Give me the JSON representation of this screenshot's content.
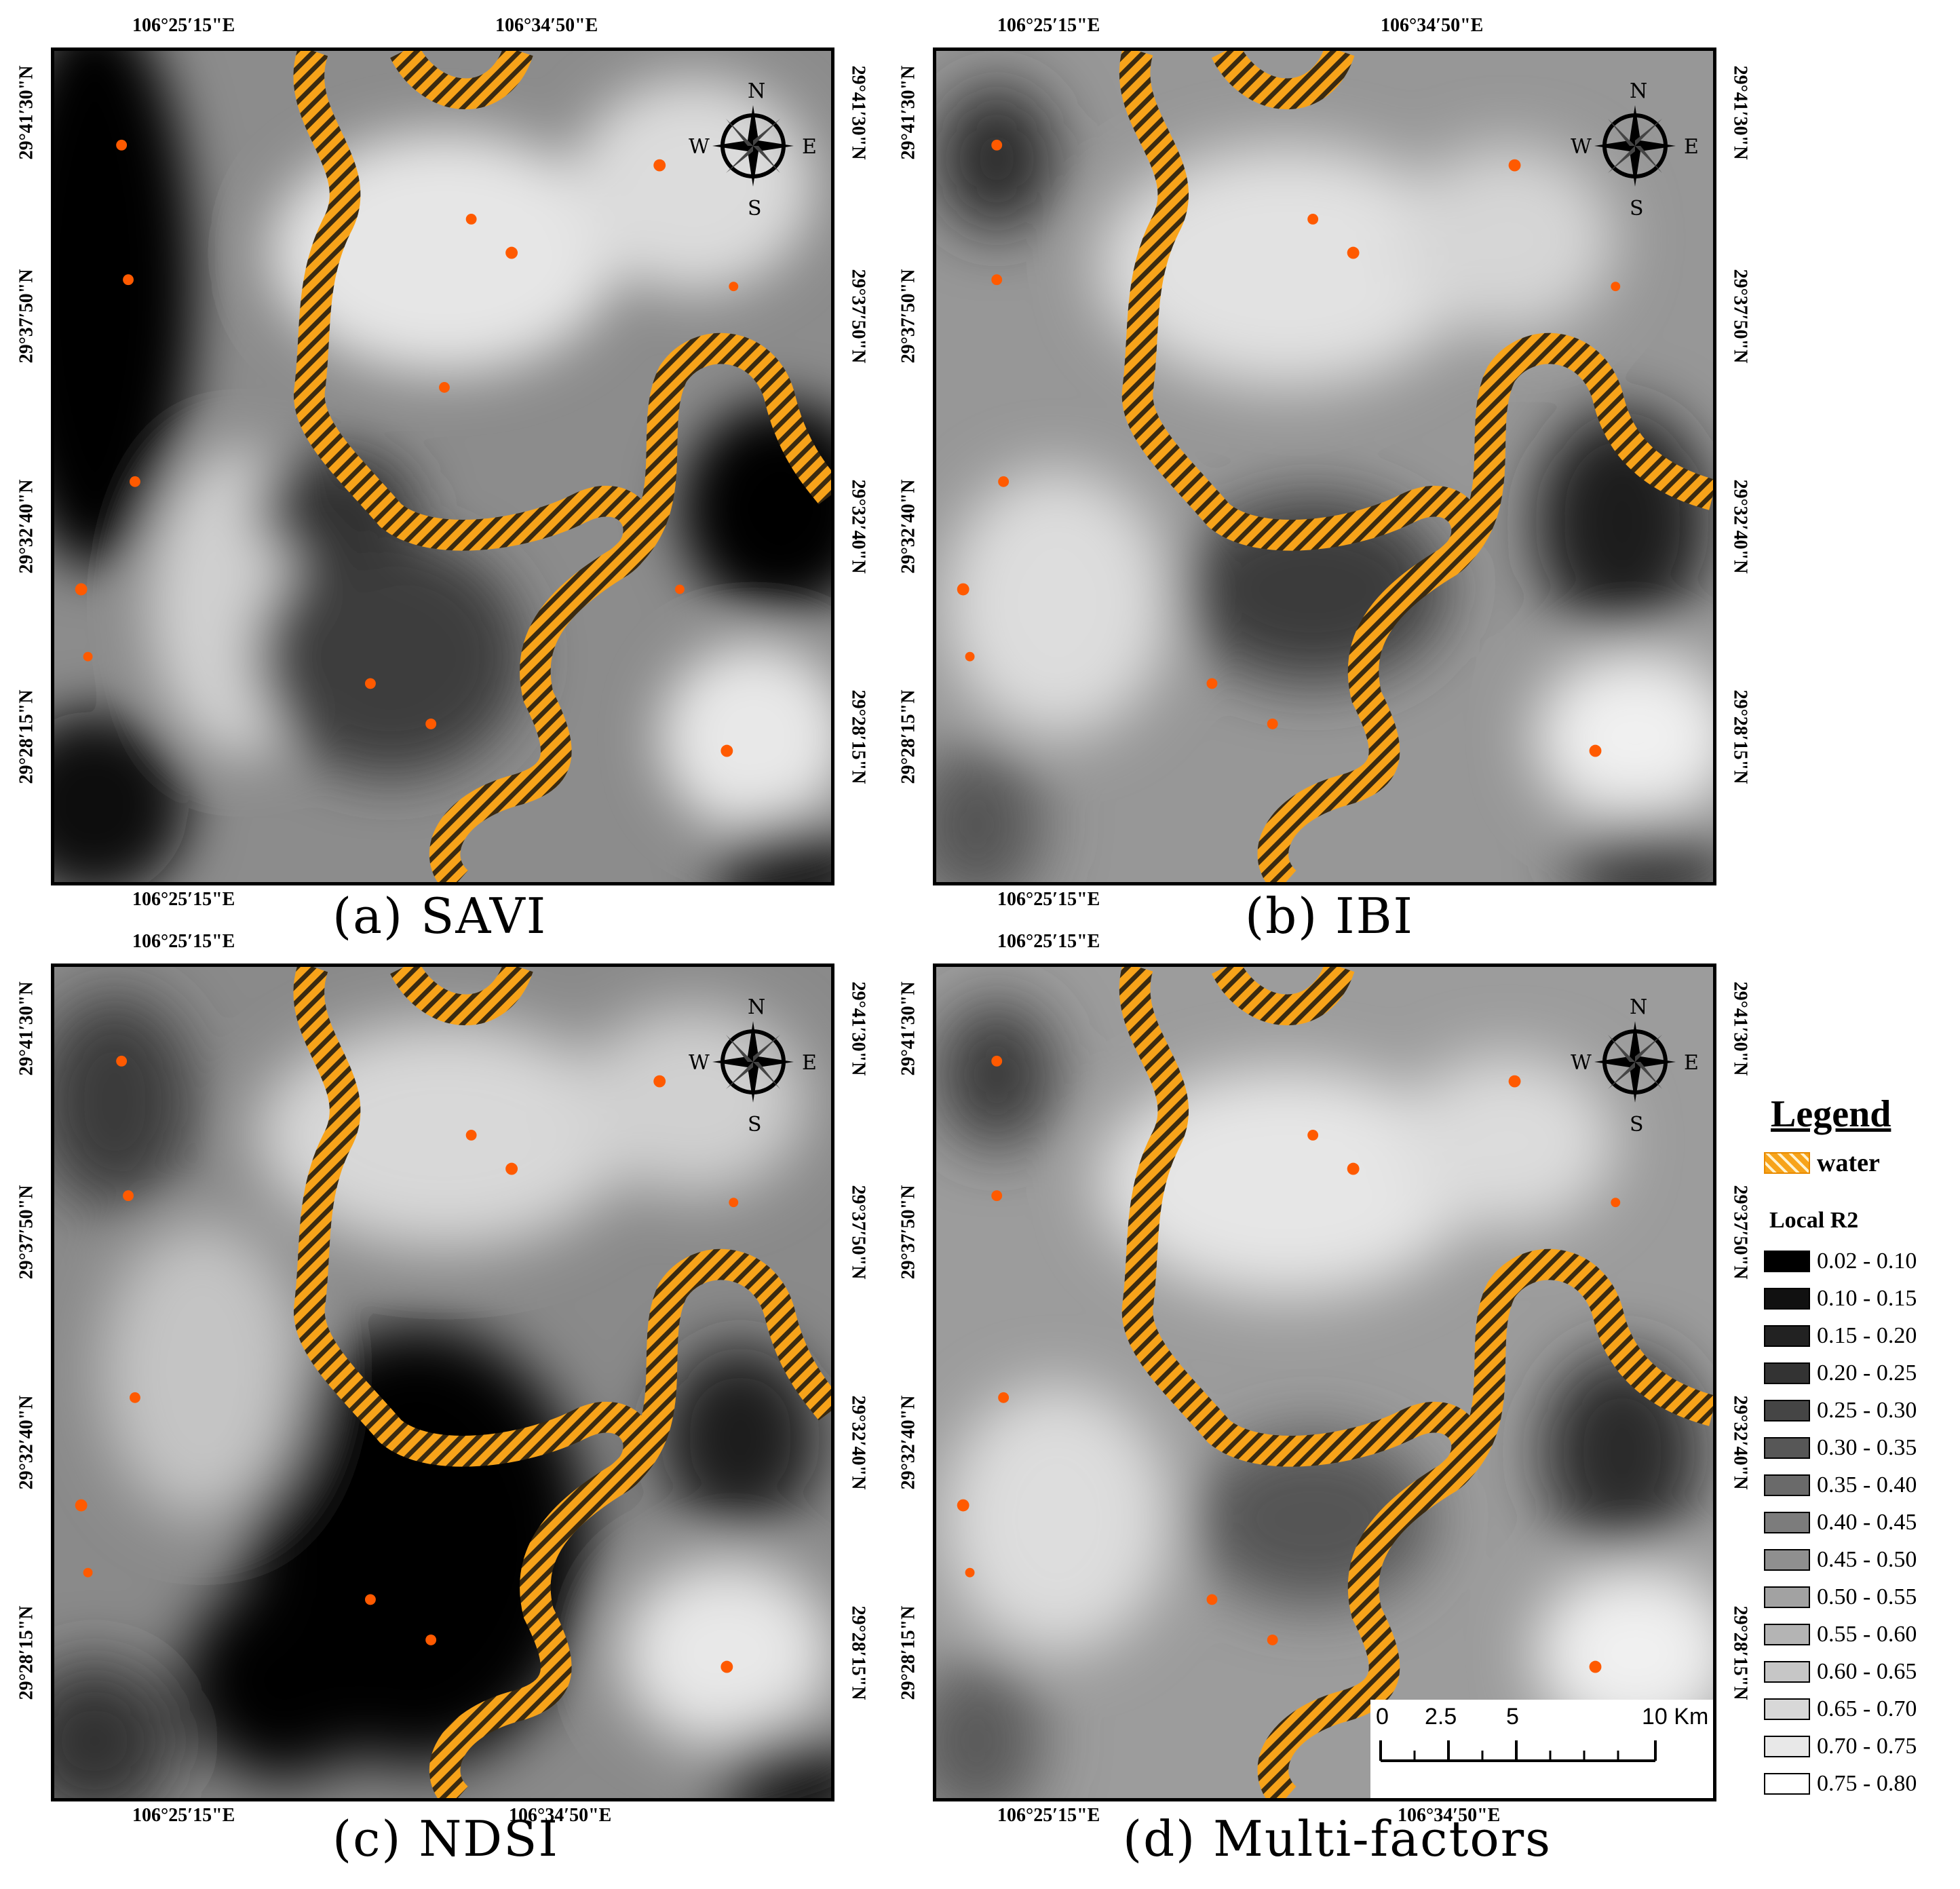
{
  "panels": [
    {
      "id": "a",
      "caption": "(a) SAVI"
    },
    {
      "id": "b",
      "caption": "(b) IBI"
    },
    {
      "id": "c",
      "caption": "(c) NDSI"
    },
    {
      "id": "d",
      "caption": "(d) Multi-factors"
    }
  ],
  "coordinates": {
    "lon_1": "106°25′15\"E",
    "lon_2": "106°34′50\"E",
    "lat_1": "29°41′30\"N",
    "lat_2": "29°37′50\"N",
    "lat_3": "29°32′40\"N",
    "lat_4": "29°28′15\"N"
  },
  "compass": {
    "n": "N",
    "s": "S",
    "e": "E",
    "w": "W"
  },
  "legend": {
    "title": "Legend",
    "water_label": "water",
    "water_color": "#f7a31a",
    "r2_title": "Local R2",
    "classes": [
      {
        "label": "0.02 - 0.10",
        "color": "#000000"
      },
      {
        "label": "0.10 - 0.15",
        "color": "#111111"
      },
      {
        "label": "0.15 - 0.20",
        "color": "#222222"
      },
      {
        "label": "0.20 - 0.25",
        "color": "#333333"
      },
      {
        "label": "0.25 - 0.30",
        "color": "#454545"
      },
      {
        "label": "0.30 - 0.35",
        "color": "#575757"
      },
      {
        "label": "0.35 - 0.40",
        "color": "#6a6a6a"
      },
      {
        "label": "0.40 - 0.45",
        "color": "#7c7c7c"
      },
      {
        "label": "0.45 - 0.50",
        "color": "#8f8f8f"
      },
      {
        "label": "0.50 - 0.55",
        "color": "#a2a2a2"
      },
      {
        "label": "0.55 - 0.60",
        "color": "#b4b4b4"
      },
      {
        "label": "0.60 - 0.65",
        "color": "#c6c6c6"
      },
      {
        "label": "0.65 - 0.70",
        "color": "#d8d8d8"
      },
      {
        "label": "0.70 - 0.75",
        "color": "#e8e8e8"
      },
      {
        "label": "0.75 - 0.80",
        "color": "#ffffff"
      }
    ]
  },
  "scalebar": {
    "labels": [
      "0",
      "2.5",
      "5",
      "10 Km"
    ]
  }
}
